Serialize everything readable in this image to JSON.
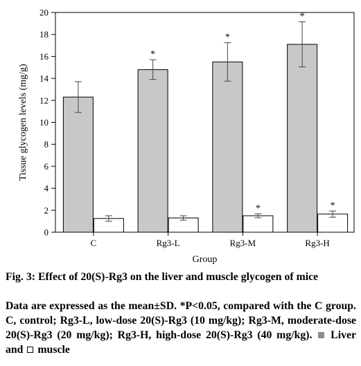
{
  "chart_data": {
    "type": "bar",
    "xlabel": "Group",
    "ylabel": "Tissue glycogen levels (mg/g)",
    "ylim": [
      0,
      20
    ],
    "yticks": [
      0,
      2,
      4,
      6,
      8,
      10,
      12,
      14,
      16,
      18,
      20
    ],
    "categories": [
      "C",
      "Rg3-L",
      "Rg3-M",
      "Rg3-H"
    ],
    "series": [
      {
        "key": "liver",
        "color": "#c8c8c8",
        "values": [
          12.3,
          14.8,
          15.5,
          17.1
        ],
        "errors": [
          1.4,
          0.9,
          1.75,
          2.05
        ],
        "significance": [
          "",
          "*",
          "*",
          "*"
        ]
      },
      {
        "key": "muscle",
        "color": "#ffffff",
        "values": [
          1.25,
          1.3,
          1.5,
          1.65
        ],
        "errors": [
          0.25,
          0.2,
          0.18,
          0.28
        ],
        "significance": [
          "",
          "",
          "*",
          "*"
        ]
      }
    ],
    "grid": false,
    "legend": "in caption"
  },
  "caption": {
    "title": "Fig. 3: Effect of 20(S)-Rg3 on the liver and muscle glycogen of mice",
    "body": "Data are expressed as the mean±SD. *P<0.05, compared with the C group. C, control; Rg3-L, low-dose 20(S)-Rg3 (10 mg/kg); Rg3-M, moderate-dose 20(S)-Rg3 (20 mg/kg); Rg3-H, high-dose 20(S)-Rg3 (40 mg/kg).",
    "liver_label": "Liver and",
    "muscle_label": "muscle"
  }
}
